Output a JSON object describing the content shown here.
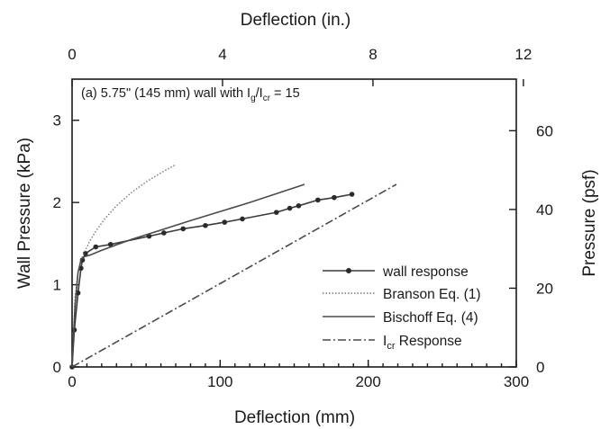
{
  "chart_data": {
    "type": "line",
    "annotation": {
      "main": "(a) 5.75\" (145 mm) wall with I",
      "sub1": "g",
      "mid": "/I",
      "sub2": "cr",
      "tail": " = 15"
    },
    "xlabel_bottom": "Deflection (mm)",
    "xlabel_top": "Deflection (in.)",
    "ylabel_left": "Wall Pressure (kPa)",
    "ylabel_right": "Pressure (psf)",
    "xlim": [
      0,
      300
    ],
    "ylim": [
      0,
      3.5
    ],
    "x_ticks_bottom": [
      "0",
      "100",
      "200",
      "300"
    ],
    "x_ticks_top": [
      "0",
      "4",
      "8",
      "12"
    ],
    "y_ticks_left": [
      "0",
      "1",
      "2",
      "3"
    ],
    "y_ticks_right": [
      "0",
      "20",
      "40",
      "60"
    ],
    "legend": {
      "position": "lower-right",
      "entries": [
        {
          "label": "wall response",
          "style": "solid-markers"
        },
        {
          "label": "Branson Eq. (1)",
          "style": "dotted"
        },
        {
          "label": "Bischoff Eq. (4)",
          "style": "solid"
        },
        {
          "label": "I",
          "sub": "cr",
          "tail": " Response",
          "style": "dash-dot"
        }
      ]
    },
    "series": [
      {
        "name": "wall response",
        "x": [
          0,
          1.5,
          4,
          6,
          7,
          9,
          16,
          26,
          52,
          62,
          75,
          90,
          103,
          115,
          138,
          147,
          153,
          166,
          177,
          189
        ],
        "y": [
          0,
          0.45,
          0.9,
          1.2,
          1.3,
          1.38,
          1.46,
          1.49,
          1.59,
          1.63,
          1.68,
          1.72,
          1.76,
          1.8,
          1.88,
          1.93,
          1.96,
          2.03,
          2.06,
          2.1
        ]
      },
      {
        "name": "Branson Eq. (1)",
        "x": [
          0,
          2,
          4,
          6,
          8,
          12,
          16,
          22,
          30,
          40,
          50,
          60,
          70
        ],
        "y": [
          0,
          0.85,
          1.15,
          1.3,
          1.38,
          1.53,
          1.65,
          1.8,
          1.96,
          2.12,
          2.25,
          2.36,
          2.46
        ]
      },
      {
        "name": "Bischoff Eq. (4)",
        "x": [
          0,
          2,
          4,
          6,
          8,
          12,
          20,
          40,
          80,
          120,
          157
        ],
        "y": [
          0,
          0.75,
          1.15,
          1.3,
          1.34,
          1.36,
          1.42,
          1.55,
          1.78,
          2.0,
          2.22
        ]
      },
      {
        "name": "Icr Response",
        "x": [
          0,
          219
        ],
        "y": [
          0,
          2.22
        ]
      }
    ]
  }
}
